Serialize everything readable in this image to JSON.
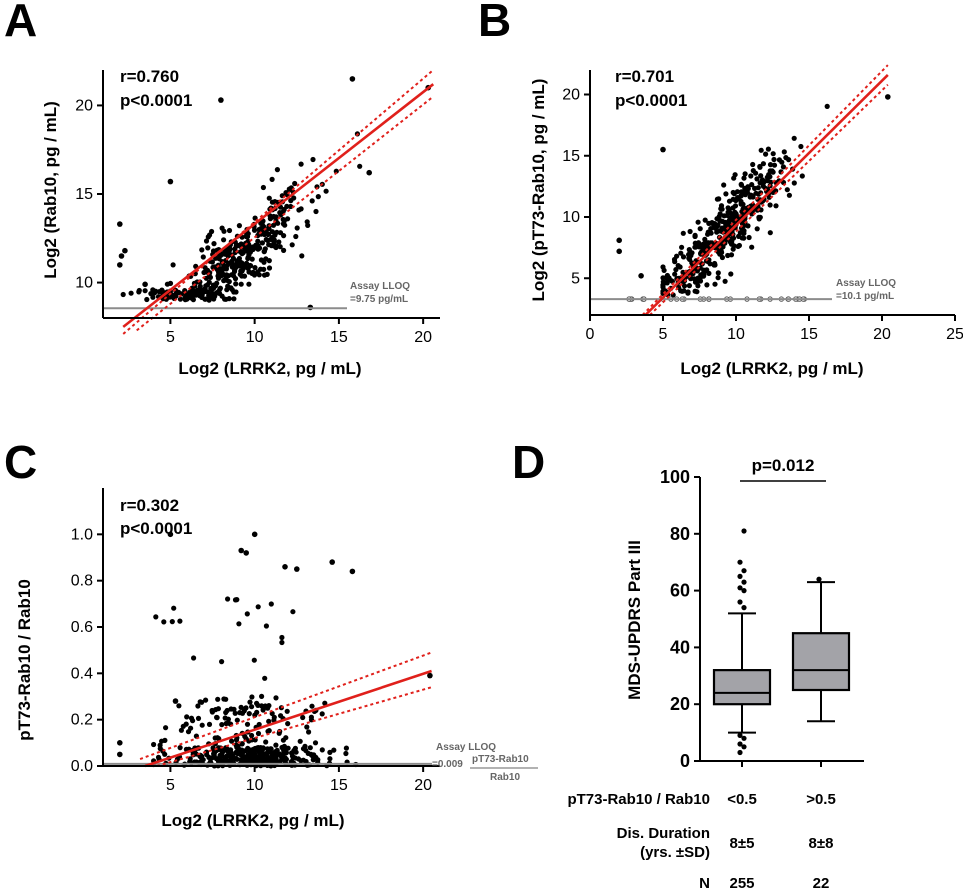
{
  "colors": {
    "fit": "#e0201b",
    "points": "#000000",
    "lloq": "#8c8c8c",
    "box": "#a3a3a8"
  },
  "chart_data": [
    {
      "panel": "A",
      "type": "scatter",
      "xlabel": "Log2 (LRRK2, pg / mL)",
      "ylabel": "Log2 (Rab10, pg / mL)",
      "xlim": [
        1,
        21
      ],
      "ylim": [
        8,
        22
      ],
      "xticks": [
        "5",
        "10",
        "15",
        "20"
      ],
      "yticks": [
        "10",
        "15",
        "20"
      ],
      "stat_r": "r=0.760",
      "stat_p": "p<0.0001",
      "lloq_label": "Assay LLOQ",
      "lloq_value_label": "=9.75 pg/mL",
      "lloq_y": 8.55,
      "fit": {
        "x": [
          2.2,
          20.6
        ],
        "y": [
          7.5,
          21.2
        ]
      },
      "ci_upper": {
        "x": [
          2.2,
          20.6
        ],
        "y": [
          7.1,
          22.0
        ]
      },
      "ci_lower": {
        "x": [
          3.0,
          20.6
        ],
        "y": [
          7.3,
          20.5
        ]
      },
      "outliers": [
        [
          2.0,
          11.0
        ],
        [
          2.1,
          11.5
        ],
        [
          2.3,
          11.8
        ],
        [
          2.0,
          13.3
        ],
        [
          5.0,
          15.7
        ],
        [
          8.0,
          20.3
        ],
        [
          13.3,
          8.6
        ],
        [
          15.8,
          21.5
        ],
        [
          20.3,
          21.0
        ],
        [
          16.8,
          16.2
        ],
        [
          4.5,
          9.2
        ],
        [
          3.5,
          9.9
        ]
      ]
    },
    {
      "panel": "B",
      "type": "scatter",
      "xlabel": "Log2 (LRRK2, pg / mL)",
      "ylabel": "Log2 (pT73-Rab10, pg / mL)",
      "xlim": [
        0,
        25
      ],
      "ylim": [
        2,
        22
      ],
      "xticks": [
        "0",
        "5",
        "10",
        "15",
        "20",
        "25"
      ],
      "yticks": [
        "5",
        "10",
        "15",
        "20"
      ],
      "stat_r": "r=0.701",
      "stat_p": "p<0.0001",
      "lloq_label": "Assay LLOQ",
      "lloq_value_label": "=10.1 pg/mL",
      "lloq_y": 3.3,
      "fit": {
        "x": [
          3.8,
          20.4
        ],
        "y": [
          2.0,
          21.6
        ]
      },
      "ci_upper": {
        "x": [
          3.6,
          20.4
        ],
        "y": [
          2.0,
          22.4
        ]
      },
      "ci_lower": {
        "x": [
          4.1,
          20.4
        ],
        "y": [
          2.0,
          20.8
        ]
      },
      "outliers": [
        [
          5.0,
          15.5
        ],
        [
          2.0,
          8.1
        ],
        [
          2.0,
          7.2
        ],
        [
          20.4,
          19.8
        ],
        [
          3.5,
          5.2
        ]
      ]
    },
    {
      "panel": "C",
      "type": "scatter",
      "xlabel": "Log2 (LRRK2, pg / mL)",
      "ylabel": "pT73-Rab10 / Rab10",
      "xlim": [
        1,
        21
      ],
      "ylim": [
        0,
        1.2
      ],
      "xticks": [
        "5",
        "10",
        "15",
        "20"
      ],
      "yticks": [
        "0.0",
        "0.2",
        "0.4",
        "0.6",
        "0.8",
        "1.0"
      ],
      "stat_r": "r=0.302",
      "stat_p": "p<0.0001",
      "lloq_label": "Assay LLOQ",
      "lloq_value_label": "=0.009",
      "lloq_ratio_num": "pT73-Rab10",
      "lloq_ratio_den": "Rab10",
      "lloq_y": 0.009,
      "fit": {
        "x": [
          3.5,
          20.5
        ],
        "y": [
          0.0,
          0.41
        ]
      },
      "ci_upper": {
        "x": [
          3.2,
          20.5
        ],
        "y": [
          0.03,
          0.49
        ]
      },
      "ci_lower": {
        "x": [
          4.2,
          20.5
        ],
        "y": [
          0.0,
          0.34
        ]
      },
      "outliers": [
        [
          5.0,
          1.0
        ],
        [
          10.0,
          1.0
        ],
        [
          9.2,
          0.93
        ],
        [
          9.5,
          0.92
        ],
        [
          11.8,
          0.86
        ],
        [
          12.5,
          0.85
        ],
        [
          14.6,
          0.88
        ],
        [
          15.8,
          0.84
        ],
        [
          20.4,
          0.39
        ],
        [
          2.0,
          0.1
        ],
        [
          2.0,
          0.05
        ],
        [
          5.3,
          0.28
        ]
      ]
    },
    {
      "panel": "D",
      "type": "box",
      "ylabel": "MDS-UPDRS Part III",
      "ylim": [
        0,
        100
      ],
      "yticks": [
        "0",
        "20",
        "40",
        "60",
        "80",
        "100"
      ],
      "p_label": "p=0.012",
      "groups": [
        {
          "label": "<0.5",
          "whisker_low": 10,
          "q1": 20,
          "median": 24,
          "q3": 32,
          "whisker_high": 52,
          "outliers": [
            3,
            5,
            6,
            8,
            9,
            54,
            56,
            60,
            61,
            63,
            65,
            67,
            70,
            81
          ],
          "duration": "8±5",
          "n": "255"
        },
        {
          "label": ">0.5",
          "whisker_low": 14,
          "q1": 25,
          "median": 32,
          "q3": 45,
          "whisker_high": 63,
          "outliers": [
            64
          ],
          "duration": "8±8",
          "n": "22"
        }
      ]
    }
  ],
  "table": {
    "row1_label": "pT73-Rab10 / Rab10",
    "row2_label_line1": "Dis. Duration",
    "row2_label_line2": "(yrs. ±SD)",
    "row3_label": "N"
  }
}
